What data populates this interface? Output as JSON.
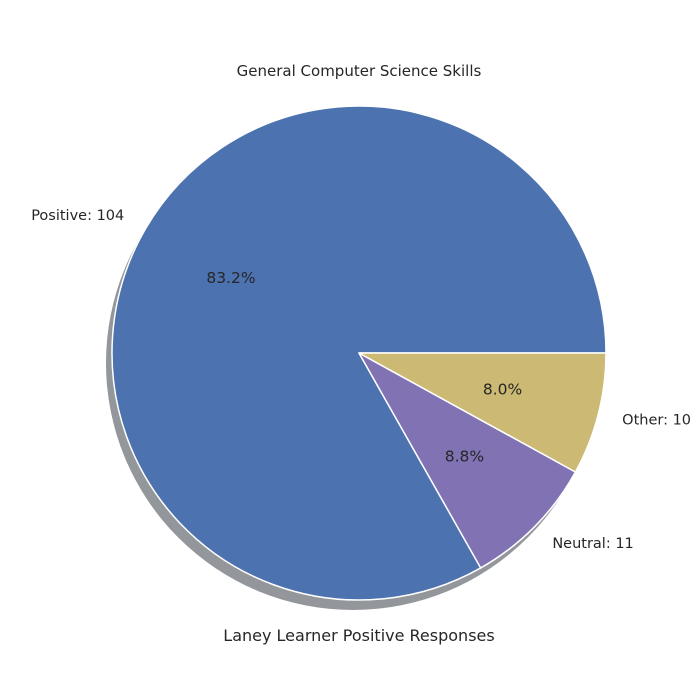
{
  "chart_data": {
    "type": "pie",
    "title": "General Computer Science Skills",
    "xlabel": "Laney Learner Positive Responses",
    "slices": [
      {
        "label": "Positive: 104",
        "value": 104,
        "percent_label": "83.2%",
        "color": "#4c72b0"
      },
      {
        "label": "Neutral: 11",
        "value": 11,
        "percent_label": "8.8%",
        "color": "#8172b3"
      },
      {
        "label": "Other: 10",
        "value": 10,
        "percent_label": "8.0%",
        "color": "#ccb974"
      }
    ],
    "start_angle_deg": 0,
    "direction": "counterclockwise",
    "shadow": true,
    "wedge_edge_color": "#ffffff"
  }
}
